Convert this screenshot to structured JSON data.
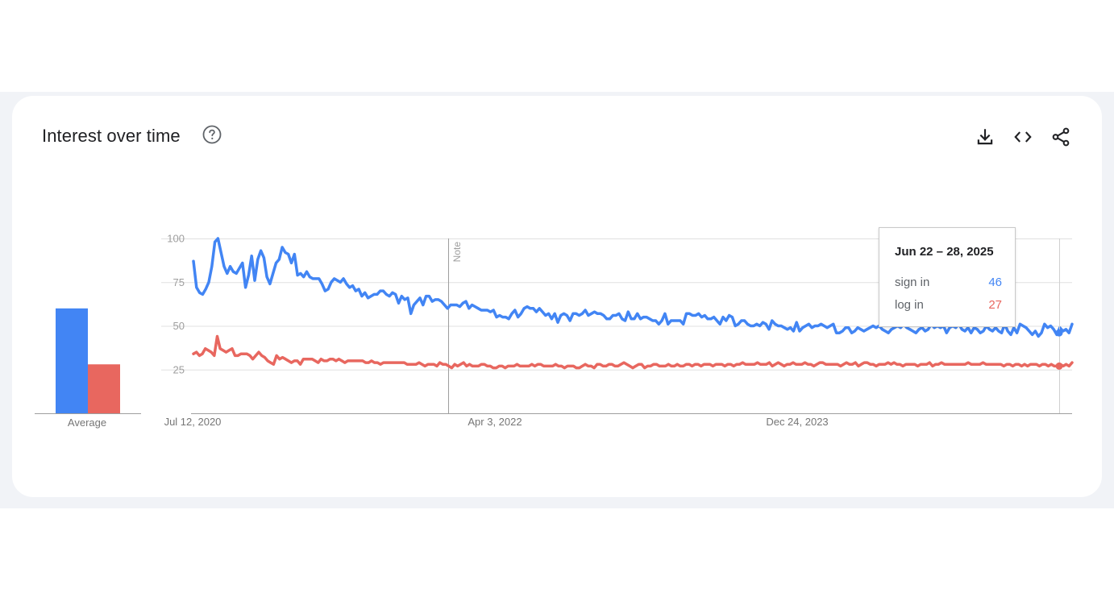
{
  "header": {
    "title": "Interest over time"
  },
  "toolbar": {
    "icons": [
      "help-icon",
      "download-icon",
      "embed-code-icon",
      "share-icon"
    ]
  },
  "colors": {
    "series_1": "#4285f4",
    "series_2": "#e8675f",
    "grid": "#e0e0e0",
    "axis_text": "#757575"
  },
  "chart_data": [
    {
      "type": "bar",
      "categories": [
        "Average"
      ],
      "series": [
        {
          "name": "sign in",
          "values": [
            60
          ]
        },
        {
          "name": "log in",
          "values": [
            28
          ]
        }
      ],
      "ylim": [
        0,
        100
      ]
    },
    {
      "type": "line",
      "x_ticks": [
        "Jul 12, 2020",
        "Apr 3, 2022",
        "Dec 24, 2023"
      ],
      "y_ticks": [
        "100",
        "75",
        "50",
        "25"
      ],
      "ylim": [
        0,
        100
      ],
      "grid": true,
      "annotation": "Note",
      "x_start": "Jul 12, 2020",
      "x_end": "Jul 6, 2025",
      "series": [
        {
          "name": "sign in",
          "values": [
            87,
            72,
            69,
            68,
            71,
            75,
            84,
            98,
            100,
            92,
            84,
            80,
            84,
            81,
            80,
            83,
            86,
            72,
            79,
            90,
            76,
            88,
            93,
            89,
            78,
            74,
            80,
            86,
            88,
            95,
            92,
            91,
            86,
            91,
            79,
            80,
            78,
            81,
            78,
            77,
            77,
            77,
            74,
            70,
            71,
            75,
            77,
            76,
            75,
            77,
            74,
            72,
            73,
            70,
            71,
            67,
            69,
            66,
            67,
            68,
            68,
            70,
            70,
            68,
            67,
            69,
            68,
            63,
            67,
            65,
            66,
            57,
            62,
            64,
            66,
            62,
            67,
            67,
            64,
            65,
            65,
            64,
            62,
            60,
            62,
            62,
            62,
            61,
            63,
            64,
            60,
            62,
            61,
            60,
            59,
            59,
            59,
            58,
            59,
            55,
            56,
            55,
            55,
            54,
            57,
            59,
            55,
            57,
            60,
            61,
            60,
            60,
            58,
            60,
            58,
            56,
            57,
            54,
            57,
            52,
            56,
            57,
            56,
            53,
            57,
            57,
            56,
            57,
            59,
            56,
            57,
            58,
            57,
            57,
            56,
            54,
            54,
            56,
            56,
            57,
            54,
            53,
            58,
            54,
            54,
            57,
            54,
            55,
            55,
            54,
            53,
            53,
            51,
            53,
            57,
            51,
            53,
            53,
            53,
            53,
            51,
            57,
            57,
            56,
            56,
            57,
            55,
            56,
            54,
            54,
            55,
            53,
            51,
            55,
            53,
            56,
            55,
            50,
            51,
            53,
            53,
            51,
            50,
            50,
            51,
            50,
            52,
            51,
            48,
            53,
            51,
            50,
            50,
            49,
            48,
            49,
            47,
            52,
            47,
            49,
            50,
            51,
            49,
            50,
            50,
            51,
            50,
            49,
            50,
            51,
            46,
            46,
            47,
            49,
            49,
            46,
            47,
            49,
            48,
            47,
            48,
            49,
            50,
            49,
            50,
            48,
            47,
            46,
            48,
            49,
            50,
            49,
            51,
            49,
            48,
            47,
            46,
            48,
            49,
            47,
            48,
            51,
            49,
            50,
            49,
            50,
            46,
            49,
            50,
            49,
            51,
            48,
            47,
            49,
            46,
            49,
            48,
            46,
            47,
            50,
            48,
            47,
            49,
            47,
            46,
            51,
            47,
            45,
            49,
            46,
            51,
            50,
            49,
            47,
            45,
            47,
            44,
            46,
            51,
            49,
            50,
            48,
            45,
            49,
            47,
            48,
            46,
            51
          ]
        },
        {
          "name": "log in",
          "values": [
            34,
            35,
            33,
            34,
            37,
            36,
            35,
            33,
            44,
            37,
            36,
            35,
            36,
            37,
            33,
            33,
            34,
            34,
            34,
            33,
            31,
            33,
            35,
            33,
            32,
            30,
            29,
            28,
            33,
            31,
            32,
            31,
            30,
            29,
            30,
            30,
            28,
            31,
            31,
            31,
            31,
            30,
            29,
            31,
            30,
            30,
            31,
            31,
            30,
            31,
            30,
            29,
            30,
            30,
            30,
            30,
            30,
            30,
            29,
            29,
            30,
            29,
            29,
            28,
            29,
            29,
            29,
            29,
            29,
            29,
            29,
            29,
            28,
            28,
            28,
            28,
            29,
            28,
            27,
            28,
            28,
            28,
            27,
            29,
            28,
            28,
            27,
            26,
            28,
            27,
            28,
            29,
            27,
            28,
            27,
            27,
            27,
            28,
            28,
            27,
            27,
            26,
            26,
            27,
            27,
            26,
            27,
            27,
            27,
            28,
            27,
            27,
            27,
            27,
            28,
            27,
            28,
            28,
            27,
            27,
            27,
            27,
            28,
            27,
            27,
            26,
            27,
            27,
            27,
            26,
            26,
            27,
            28,
            27,
            27,
            26,
            28,
            28,
            27,
            27,
            28,
            28,
            27,
            27,
            28,
            29,
            28,
            27,
            26,
            27,
            28,
            28,
            26,
            27,
            27,
            28,
            28,
            27,
            27,
            27,
            28,
            27,
            27,
            28,
            27,
            27,
            28,
            28,
            27,
            28,
            28,
            27,
            28,
            28,
            28,
            27,
            28,
            28,
            28,
            27,
            28,
            28,
            27,
            28,
            28,
            29,
            28,
            28,
            28,
            28,
            29,
            28,
            28,
            28,
            29,
            27,
            28,
            29,
            28,
            27,
            28,
            28,
            29,
            28,
            28,
            28,
            29,
            28,
            28,
            27,
            28,
            29,
            29,
            28,
            28,
            28,
            28,
            28,
            27,
            28,
            29,
            28,
            28,
            29,
            27,
            28,
            29,
            29,
            28,
            28,
            27,
            28,
            28,
            28,
            29,
            28,
            29,
            28,
            28,
            27,
            28,
            28,
            28,
            28,
            27,
            28,
            28,
            28,
            29,
            27,
            28,
            28,
            29,
            28,
            28,
            28,
            28,
            28,
            28,
            28,
            28,
            29,
            28,
            28,
            28,
            28,
            29,
            28,
            28,
            28,
            28,
            28,
            28,
            27,
            28,
            28,
            27,
            28,
            28,
            27,
            28,
            27,
            28,
            28,
            28,
            27,
            28,
            28,
            27,
            28,
            27,
            27,
            28,
            27,
            28,
            27,
            29
          ]
        }
      ],
      "tooltip": {
        "date": "Jun 22 – 28, 2025",
        "rows": [
          {
            "label": "sign in",
            "value": "46"
          },
          {
            "label": "log in",
            "value": "27"
          }
        ]
      }
    }
  ]
}
